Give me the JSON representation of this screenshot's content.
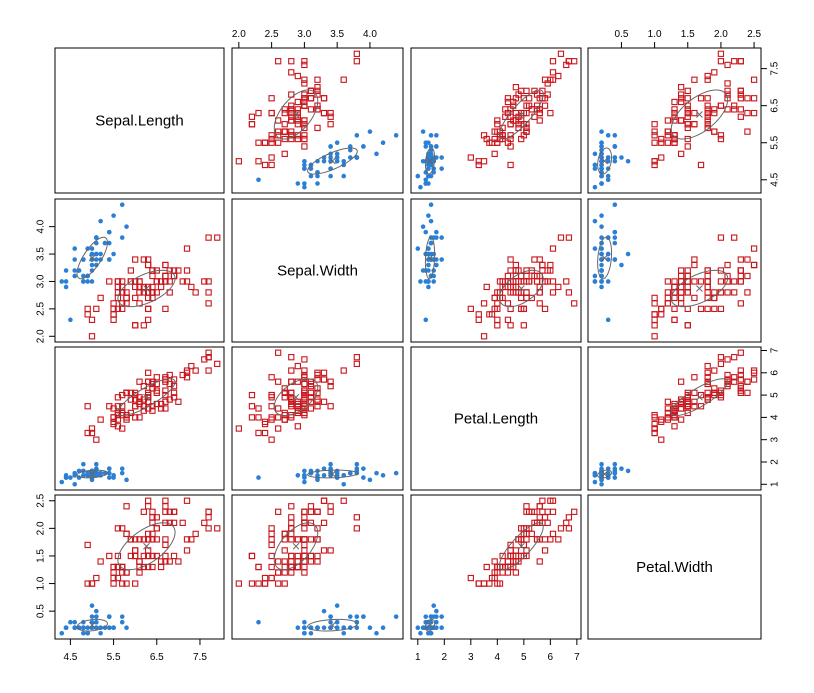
{
  "chart_data": {
    "type": "scatter-matrix",
    "variables": [
      "Sepal.Length",
      "Sepal.Width",
      "Petal.Length",
      "Petal.Width"
    ],
    "ranges": [
      [
        4.3,
        7.9
      ],
      [
        2.0,
        4.4
      ],
      [
        1.0,
        6.9
      ],
      [
        0.1,
        2.5
      ]
    ],
    "ticks": [
      [
        "4.5",
        "5.5",
        "6.5",
        "7.5"
      ],
      [
        "2.0",
        "2.5",
        "3.0",
        "3.5",
        "4.0"
      ],
      [
        "1",
        "2",
        "3",
        "4",
        "5",
        "6",
        "7"
      ],
      [
        "0.5",
        "1.0",
        "1.5",
        "2.0",
        "2.5"
      ]
    ],
    "groups": [
      {
        "marker": "filled-circle",
        "color": "#2b7fd4",
        "points": [
          [
            5.1,
            3.5,
            1.4,
            0.2
          ],
          [
            4.9,
            3.0,
            1.4,
            0.2
          ],
          [
            4.7,
            3.2,
            1.3,
            0.2
          ],
          [
            4.6,
            3.1,
            1.5,
            0.2
          ],
          [
            5.0,
            3.6,
            1.4,
            0.2
          ],
          [
            5.4,
            3.9,
            1.7,
            0.4
          ],
          [
            4.6,
            3.4,
            1.4,
            0.3
          ],
          [
            5.0,
            3.4,
            1.5,
            0.2
          ],
          [
            4.4,
            2.9,
            1.4,
            0.2
          ],
          [
            4.9,
            3.1,
            1.5,
            0.1
          ],
          [
            5.4,
            3.7,
            1.5,
            0.2
          ],
          [
            4.8,
            3.4,
            1.6,
            0.2
          ],
          [
            4.8,
            3.0,
            1.4,
            0.1
          ],
          [
            4.3,
            3.0,
            1.1,
            0.1
          ],
          [
            5.8,
            4.0,
            1.2,
            0.2
          ],
          [
            5.7,
            4.4,
            1.5,
            0.4
          ],
          [
            5.4,
            3.9,
            1.3,
            0.4
          ],
          [
            5.1,
            3.5,
            1.4,
            0.3
          ],
          [
            5.7,
            3.8,
            1.7,
            0.3
          ],
          [
            5.1,
            3.8,
            1.5,
            0.3
          ],
          [
            5.4,
            3.4,
            1.7,
            0.2
          ],
          [
            5.1,
            3.7,
            1.5,
            0.4
          ],
          [
            4.6,
            3.6,
            1.0,
            0.2
          ],
          [
            5.1,
            3.3,
            1.7,
            0.5
          ],
          [
            4.8,
            3.4,
            1.9,
            0.2
          ],
          [
            5.0,
            3.0,
            1.6,
            0.2
          ],
          [
            5.0,
            3.4,
            1.6,
            0.4
          ],
          [
            5.2,
            3.5,
            1.5,
            0.2
          ],
          [
            5.2,
            3.4,
            1.4,
            0.2
          ],
          [
            4.7,
            3.2,
            1.6,
            0.2
          ],
          [
            4.8,
            3.1,
            1.6,
            0.2
          ],
          [
            5.4,
            3.4,
            1.5,
            0.4
          ],
          [
            5.2,
            4.1,
            1.5,
            0.1
          ],
          [
            5.5,
            4.2,
            1.4,
            0.2
          ],
          [
            4.9,
            3.1,
            1.5,
            0.2
          ],
          [
            5.0,
            3.2,
            1.2,
            0.2
          ],
          [
            5.5,
            3.5,
            1.3,
            0.2
          ],
          [
            4.9,
            3.6,
            1.4,
            0.1
          ],
          [
            4.4,
            3.0,
            1.3,
            0.2
          ],
          [
            5.1,
            3.4,
            1.5,
            0.2
          ],
          [
            5.0,
            3.5,
            1.3,
            0.3
          ],
          [
            4.5,
            2.3,
            1.3,
            0.3
          ],
          [
            4.4,
            3.2,
            1.3,
            0.2
          ],
          [
            5.0,
            3.5,
            1.6,
            0.6
          ],
          [
            5.1,
            3.8,
            1.9,
            0.4
          ],
          [
            4.8,
            3.0,
            1.4,
            0.3
          ],
          [
            5.1,
            3.8,
            1.6,
            0.2
          ],
          [
            4.6,
            3.2,
            1.4,
            0.2
          ],
          [
            5.3,
            3.7,
            1.5,
            0.2
          ],
          [
            5.0,
            3.3,
            1.4,
            0.2
          ]
        ],
        "mean": [
          5.006,
          3.428,
          1.462,
          0.246
        ],
        "sd": [
          0.352,
          0.379,
          0.174,
          0.105
        ],
        "cor": [
          [
            1,
            0.743,
            0.267,
            0.278
          ],
          [
            0.743,
            1,
            0.178,
            0.233
          ],
          [
            0.267,
            0.178,
            1,
            0.332
          ],
          [
            0.278,
            0.233,
            0.332,
            1
          ]
        ]
      },
      {
        "marker": "open-square",
        "color": "#c8161c",
        "points": [
          [
            7.0,
            3.2,
            4.7,
            1.4
          ],
          [
            6.4,
            3.2,
            4.5,
            1.5
          ],
          [
            6.9,
            3.1,
            4.9,
            1.5
          ],
          [
            5.5,
            2.3,
            4.0,
            1.3
          ],
          [
            6.5,
            2.8,
            4.6,
            1.5
          ],
          [
            5.7,
            2.8,
            4.5,
            1.3
          ],
          [
            6.3,
            3.3,
            4.7,
            1.6
          ],
          [
            4.9,
            2.4,
            3.3,
            1.0
          ],
          [
            6.6,
            2.9,
            4.6,
            1.3
          ],
          [
            5.2,
            2.7,
            3.9,
            1.4
          ],
          [
            5.0,
            2.0,
            3.5,
            1.0
          ],
          [
            5.9,
            3.0,
            4.2,
            1.5
          ],
          [
            6.0,
            2.2,
            4.0,
            1.0
          ],
          [
            6.1,
            2.9,
            4.7,
            1.4
          ],
          [
            5.6,
            2.9,
            3.6,
            1.3
          ],
          [
            6.7,
            3.1,
            4.4,
            1.4
          ],
          [
            5.6,
            3.0,
            4.5,
            1.5
          ],
          [
            5.8,
            2.7,
            4.1,
            1.0
          ],
          [
            6.2,
            2.2,
            4.5,
            1.5
          ],
          [
            5.6,
            2.5,
            3.9,
            1.1
          ],
          [
            5.9,
            3.2,
            4.8,
            1.8
          ],
          [
            6.1,
            2.8,
            4.0,
            1.3
          ],
          [
            6.3,
            2.5,
            4.9,
            1.5
          ],
          [
            6.1,
            2.8,
            4.7,
            1.2
          ],
          [
            6.4,
            2.9,
            4.3,
            1.3
          ],
          [
            6.6,
            3.0,
            4.4,
            1.4
          ],
          [
            6.8,
            2.8,
            4.8,
            1.4
          ],
          [
            6.7,
            3.0,
            5.0,
            1.7
          ],
          [
            6.0,
            2.9,
            4.5,
            1.5
          ],
          [
            5.7,
            2.6,
            3.5,
            1.0
          ],
          [
            5.5,
            2.4,
            3.8,
            1.1
          ],
          [
            5.5,
            2.4,
            3.7,
            1.0
          ],
          [
            5.8,
            2.7,
            3.9,
            1.2
          ],
          [
            6.0,
            2.7,
            5.1,
            1.6
          ],
          [
            5.4,
            3.0,
            4.5,
            1.5
          ],
          [
            6.0,
            3.4,
            4.5,
            1.6
          ],
          [
            6.7,
            3.1,
            4.7,
            1.5
          ],
          [
            6.3,
            2.3,
            4.4,
            1.3
          ],
          [
            5.6,
            3.0,
            4.1,
            1.3
          ],
          [
            5.5,
            2.5,
            4.0,
            1.3
          ],
          [
            5.5,
            2.6,
            4.4,
            1.2
          ],
          [
            6.1,
            3.0,
            4.6,
            1.4
          ],
          [
            5.8,
            2.6,
            4.0,
            1.2
          ],
          [
            5.0,
            2.3,
            3.3,
            1.0
          ],
          [
            5.6,
            2.7,
            4.2,
            1.3
          ],
          [
            5.7,
            3.0,
            4.2,
            1.2
          ],
          [
            5.7,
            2.9,
            4.2,
            1.3
          ],
          [
            6.2,
            2.9,
            4.3,
            1.3
          ],
          [
            5.1,
            2.5,
            3.0,
            1.1
          ],
          [
            5.7,
            2.8,
            4.1,
            1.3
          ],
          [
            6.3,
            3.3,
            6.0,
            2.5
          ],
          [
            5.8,
            2.7,
            5.1,
            1.9
          ],
          [
            7.1,
            3.0,
            5.9,
            2.1
          ],
          [
            6.3,
            2.9,
            5.6,
            1.8
          ],
          [
            6.5,
            3.0,
            5.8,
            2.2
          ],
          [
            7.6,
            3.0,
            6.6,
            2.1
          ],
          [
            4.9,
            2.5,
            4.5,
            1.7
          ],
          [
            7.3,
            2.9,
            6.3,
            1.8
          ],
          [
            6.7,
            2.5,
            5.8,
            1.8
          ],
          [
            7.2,
            3.6,
            6.1,
            2.5
          ],
          [
            6.5,
            3.2,
            5.1,
            2.0
          ],
          [
            6.4,
            2.7,
            5.3,
            1.9
          ],
          [
            6.8,
            3.0,
            5.5,
            2.1
          ],
          [
            5.7,
            2.5,
            5.0,
            2.0
          ],
          [
            5.8,
            2.8,
            5.1,
            2.4
          ],
          [
            6.4,
            3.2,
            5.3,
            2.3
          ],
          [
            6.5,
            3.0,
            5.5,
            1.8
          ],
          [
            7.7,
            3.8,
            6.7,
            2.2
          ],
          [
            7.7,
            2.6,
            6.9,
            2.3
          ],
          [
            6.0,
            2.2,
            5.0,
            1.5
          ],
          [
            6.9,
            3.2,
            5.7,
            2.3
          ],
          [
            5.6,
            2.8,
            4.9,
            2.0
          ],
          [
            7.7,
            2.8,
            6.7,
            2.0
          ],
          [
            6.3,
            2.7,
            4.9,
            1.8
          ],
          [
            6.7,
            3.3,
            5.7,
            2.1
          ],
          [
            7.2,
            3.2,
            6.0,
            1.8
          ],
          [
            6.2,
            2.8,
            4.8,
            1.8
          ],
          [
            6.1,
            3.0,
            4.9,
            1.8
          ],
          [
            6.4,
            2.8,
            5.6,
            2.1
          ],
          [
            7.2,
            3.0,
            5.8,
            1.6
          ],
          [
            7.4,
            2.8,
            6.1,
            1.9
          ],
          [
            7.9,
            3.8,
            6.4,
            2.0
          ],
          [
            6.4,
            2.8,
            5.6,
            2.2
          ],
          [
            6.3,
            2.8,
            5.1,
            1.5
          ],
          [
            6.1,
            2.6,
            5.6,
            1.4
          ],
          [
            7.7,
            3.0,
            6.1,
            2.3
          ],
          [
            6.3,
            3.4,
            5.6,
            2.4
          ],
          [
            6.4,
            3.1,
            5.5,
            1.8
          ],
          [
            6.0,
            3.0,
            4.8,
            1.8
          ],
          [
            6.9,
            3.1,
            5.4,
            2.1
          ],
          [
            6.7,
            3.1,
            5.6,
            2.4
          ],
          [
            6.9,
            3.1,
            5.1,
            2.3
          ],
          [
            5.8,
            2.7,
            5.1,
            1.9
          ],
          [
            6.8,
            3.2,
            5.9,
            2.3
          ],
          [
            6.7,
            3.3,
            5.7,
            2.5
          ],
          [
            6.7,
            3.0,
            5.2,
            2.3
          ],
          [
            6.3,
            2.5,
            5.0,
            1.9
          ],
          [
            6.5,
            3.0,
            5.2,
            2.0
          ],
          [
            6.2,
            3.4,
            5.4,
            2.3
          ],
          [
            5.9,
            3.0,
            5.1,
            1.8
          ]
        ],
        "mean": [
          6.262,
          2.872,
          4.906,
          1.676
        ],
        "sd": [
          0.662,
          0.332,
          0.826,
          0.425
        ],
        "cor": [
          [
            1,
            0.554,
            0.828,
            0.594
          ],
          [
            0.554,
            1,
            0.52,
            0.566
          ],
          [
            0.828,
            0.52,
            1,
            0.823
          ],
          [
            0.594,
            0.566,
            0.823,
            1
          ]
        ]
      }
    ],
    "ellipse_color": "#666666",
    "ellipse_scale": 1.0
  }
}
